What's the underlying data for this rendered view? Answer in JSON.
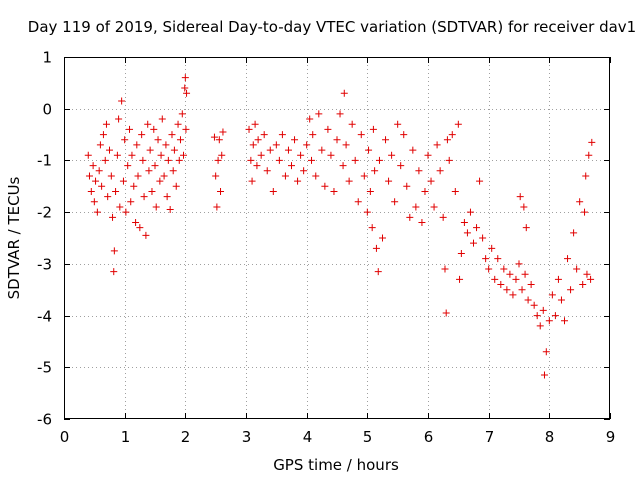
{
  "chart_data": {
    "type": "scatter",
    "title": "Day 119 of 2019, Sidereal Day-to-day VTEC variation (SDTVAR) for receiver dav1",
    "xlabel": "GPS time / hours",
    "ylabel": "SDTVAR / TECUs",
    "xlim": [
      0,
      9
    ],
    "ylim": [
      -6,
      1
    ],
    "xticks": [
      0,
      1,
      2,
      3,
      4,
      5,
      6,
      7,
      8,
      9
    ],
    "xtick_labels": [
      "0",
      "1",
      "2",
      "3",
      "4",
      "5",
      "6",
      "7",
      "8",
      "9"
    ],
    "yticks": [
      1,
      0,
      -1,
      -2,
      -3,
      -4,
      -5,
      -6
    ],
    "ytick_labels": [
      "1",
      "0",
      "-1",
      "-2",
      "-3",
      "-4",
      "-5",
      "-6"
    ],
    "grid": true,
    "marker": "+",
    "color": "#e00000",
    "series": [
      {
        "name": "dav1",
        "points": [
          [
            0.4,
            -0.9
          ],
          [
            0.42,
            -1.3
          ],
          [
            0.45,
            -1.6
          ],
          [
            0.48,
            -1.1
          ],
          [
            0.5,
            -1.8
          ],
          [
            0.52,
            -1.4
          ],
          [
            0.55,
            -2.0
          ],
          [
            0.58,
            -1.2
          ],
          [
            0.6,
            -0.7
          ],
          [
            0.62,
            -1.5
          ],
          [
            0.65,
            -0.5
          ],
          [
            0.68,
            -1.0
          ],
          [
            0.7,
            -0.3
          ],
          [
            0.72,
            -1.7
          ],
          [
            0.75,
            -0.8
          ],
          [
            0.78,
            -1.3
          ],
          [
            0.8,
            -2.1
          ],
          [
            0.82,
            -3.15
          ],
          [
            0.83,
            -2.75
          ],
          [
            0.85,
            -1.6
          ],
          [
            0.88,
            -0.9
          ],
          [
            0.9,
            -0.2
          ],
          [
            0.92,
            -1.9
          ],
          [
            0.95,
            0.15
          ],
          [
            0.98,
            -1.4
          ],
          [
            1.0,
            -0.6
          ],
          [
            1.02,
            -2.0
          ],
          [
            1.05,
            -1.1
          ],
          [
            1.08,
            -0.4
          ],
          [
            1.1,
            -1.8
          ],
          [
            1.12,
            -0.9
          ],
          [
            1.15,
            -1.5
          ],
          [
            1.18,
            -2.2
          ],
          [
            1.2,
            -0.7
          ],
          [
            1.22,
            -1.3
          ],
          [
            1.25,
            -2.3
          ],
          [
            1.28,
            -0.5
          ],
          [
            1.3,
            -1.0
          ],
          [
            1.32,
            -1.7
          ],
          [
            1.35,
            -2.45
          ],
          [
            1.38,
            -0.3
          ],
          [
            1.4,
            -1.2
          ],
          [
            1.42,
            -0.8
          ],
          [
            1.45,
            -1.6
          ],
          [
            1.48,
            -0.4
          ],
          [
            1.5,
            -1.1
          ],
          [
            1.52,
            -1.9
          ],
          [
            1.55,
            -0.6
          ],
          [
            1.58,
            -1.4
          ],
          [
            1.6,
            -0.9
          ],
          [
            1.62,
            -0.2
          ],
          [
            1.65,
            -1.3
          ],
          [
            1.68,
            -0.7
          ],
          [
            1.7,
            -1.7
          ],
          [
            1.72,
            -1.0
          ],
          [
            1.75,
            -1.95
          ],
          [
            1.78,
            -0.5
          ],
          [
            1.8,
            -1.2
          ],
          [
            1.82,
            -0.8
          ],
          [
            1.85,
            -1.5
          ],
          [
            1.88,
            -0.3
          ],
          [
            1.9,
            -1.0
          ],
          [
            1.92,
            -0.6
          ],
          [
            1.95,
            -0.1
          ],
          [
            1.97,
            -0.9
          ],
          [
            1.99,
            0.4
          ],
          [
            2.0,
            0.6
          ],
          [
            2.01,
            -0.4
          ],
          [
            2.02,
            0.3
          ],
          [
            2.48,
            -0.55
          ],
          [
            2.5,
            -1.3
          ],
          [
            2.52,
            -1.9
          ],
          [
            2.54,
            -1.0
          ],
          [
            2.56,
            -0.6
          ],
          [
            2.58,
            -1.6
          ],
          [
            2.6,
            -0.9
          ],
          [
            2.62,
            -0.45
          ],
          [
            3.05,
            -0.4
          ],
          [
            3.08,
            -1.0
          ],
          [
            3.1,
            -1.4
          ],
          [
            3.12,
            -0.7
          ],
          [
            3.15,
            -0.3
          ],
          [
            3.18,
            -1.1
          ],
          [
            3.2,
            -0.6
          ],
          [
            3.25,
            -0.9
          ],
          [
            3.3,
            -0.5
          ],
          [
            3.35,
            -1.2
          ],
          [
            3.4,
            -0.8
          ],
          [
            3.45,
            -1.6
          ],
          [
            3.5,
            -0.7
          ],
          [
            3.55,
            -1.0
          ],
          [
            3.6,
            -0.5
          ],
          [
            3.65,
            -1.3
          ],
          [
            3.7,
            -0.8
          ],
          [
            3.75,
            -1.1
          ],
          [
            3.8,
            -0.6
          ],
          [
            3.85,
            -1.4
          ],
          [
            3.9,
            -0.9
          ],
          [
            3.95,
            -1.2
          ],
          [
            4.0,
            -0.7
          ],
          [
            4.05,
            -0.2
          ],
          [
            4.08,
            -1.0
          ],
          [
            4.1,
            -0.5
          ],
          [
            4.15,
            -1.3
          ],
          [
            4.2,
            -0.1
          ],
          [
            4.25,
            -0.8
          ],
          [
            4.3,
            -1.5
          ],
          [
            4.35,
            -0.4
          ],
          [
            4.4,
            -0.9
          ],
          [
            4.45,
            -1.6
          ],
          [
            4.5,
            -0.6
          ],
          [
            4.55,
            -0.1
          ],
          [
            4.6,
            -1.1
          ],
          [
            4.62,
            0.3
          ],
          [
            4.65,
            -0.7
          ],
          [
            4.7,
            -1.4
          ],
          [
            4.75,
            -0.3
          ],
          [
            4.8,
            -1.0
          ],
          [
            4.85,
            -1.8
          ],
          [
            4.9,
            -0.5
          ],
          [
            4.95,
            -1.3
          ],
          [
            5.0,
            -2.0
          ],
          [
            5.02,
            -0.8
          ],
          [
            5.05,
            -1.6
          ],
          [
            5.08,
            -2.3
          ],
          [
            5.1,
            -0.4
          ],
          [
            5.12,
            -1.2
          ],
          [
            5.15,
            -2.7
          ],
          [
            5.18,
            -3.15
          ],
          [
            5.2,
            -1.0
          ],
          [
            5.25,
            -2.5
          ],
          [
            5.3,
            -0.6
          ],
          [
            5.35,
            -1.4
          ],
          [
            5.4,
            -0.9
          ],
          [
            5.45,
            -1.8
          ],
          [
            5.5,
            -0.3
          ],
          [
            5.55,
            -1.1
          ],
          [
            5.6,
            -0.5
          ],
          [
            5.65,
            -1.5
          ],
          [
            5.7,
            -2.1
          ],
          [
            5.75,
            -0.8
          ],
          [
            5.8,
            -1.9
          ],
          [
            5.85,
            -1.2
          ],
          [
            5.9,
            -2.2
          ],
          [
            5.95,
            -1.6
          ],
          [
            6.0,
            -0.9
          ],
          [
            6.05,
            -1.4
          ],
          [
            6.1,
            -1.9
          ],
          [
            6.15,
            -0.7
          ],
          [
            6.2,
            -1.2
          ],
          [
            6.25,
            -2.1
          ],
          [
            6.28,
            -3.1
          ],
          [
            6.3,
            -3.95
          ],
          [
            6.32,
            -0.6
          ],
          [
            6.35,
            -1.0
          ],
          [
            6.4,
            -0.5
          ],
          [
            6.45,
            -1.6
          ],
          [
            6.5,
            -0.3
          ],
          [
            6.52,
            -3.3
          ],
          [
            6.55,
            -2.8
          ],
          [
            6.6,
            -2.2
          ],
          [
            6.65,
            -2.4
          ],
          [
            6.7,
            -2.0
          ],
          [
            6.75,
            -2.6
          ],
          [
            6.8,
            -2.3
          ],
          [
            6.85,
            -1.4
          ],
          [
            6.9,
            -2.5
          ],
          [
            6.95,
            -2.9
          ],
          [
            7.0,
            -3.1
          ],
          [
            7.05,
            -2.7
          ],
          [
            7.1,
            -3.3
          ],
          [
            7.15,
            -2.9
          ],
          [
            7.2,
            -3.4
          ],
          [
            7.25,
            -3.1
          ],
          [
            7.3,
            -3.5
          ],
          [
            7.35,
            -3.2
          ],
          [
            7.4,
            -3.6
          ],
          [
            7.45,
            -3.3
          ],
          [
            7.5,
            -3.0
          ],
          [
            7.52,
            -1.7
          ],
          [
            7.55,
            -3.5
          ],
          [
            7.58,
            -1.9
          ],
          [
            7.6,
            -3.2
          ],
          [
            7.62,
            -2.3
          ],
          [
            7.65,
            -3.7
          ],
          [
            7.7,
            -3.4
          ],
          [
            7.75,
            -3.8
          ],
          [
            7.8,
            -4.0
          ],
          [
            7.85,
            -4.2
          ],
          [
            7.9,
            -3.9
          ],
          [
            7.92,
            -5.15
          ],
          [
            7.95,
            -4.7
          ],
          [
            8.0,
            -4.1
          ],
          [
            8.05,
            -3.6
          ],
          [
            8.1,
            -4.0
          ],
          [
            8.15,
            -3.3
          ],
          [
            8.2,
            -3.7
          ],
          [
            8.25,
            -4.1
          ],
          [
            8.3,
            -2.9
          ],
          [
            8.35,
            -3.5
          ],
          [
            8.4,
            -2.4
          ],
          [
            8.45,
            -3.1
          ],
          [
            8.5,
            -1.8
          ],
          [
            8.55,
            -3.4
          ],
          [
            8.58,
            -2.0
          ],
          [
            8.6,
            -1.3
          ],
          [
            8.62,
            -3.2
          ],
          [
            8.65,
            -0.9
          ],
          [
            8.68,
            -3.3
          ],
          [
            8.7,
            -0.65
          ]
        ]
      }
    ]
  }
}
